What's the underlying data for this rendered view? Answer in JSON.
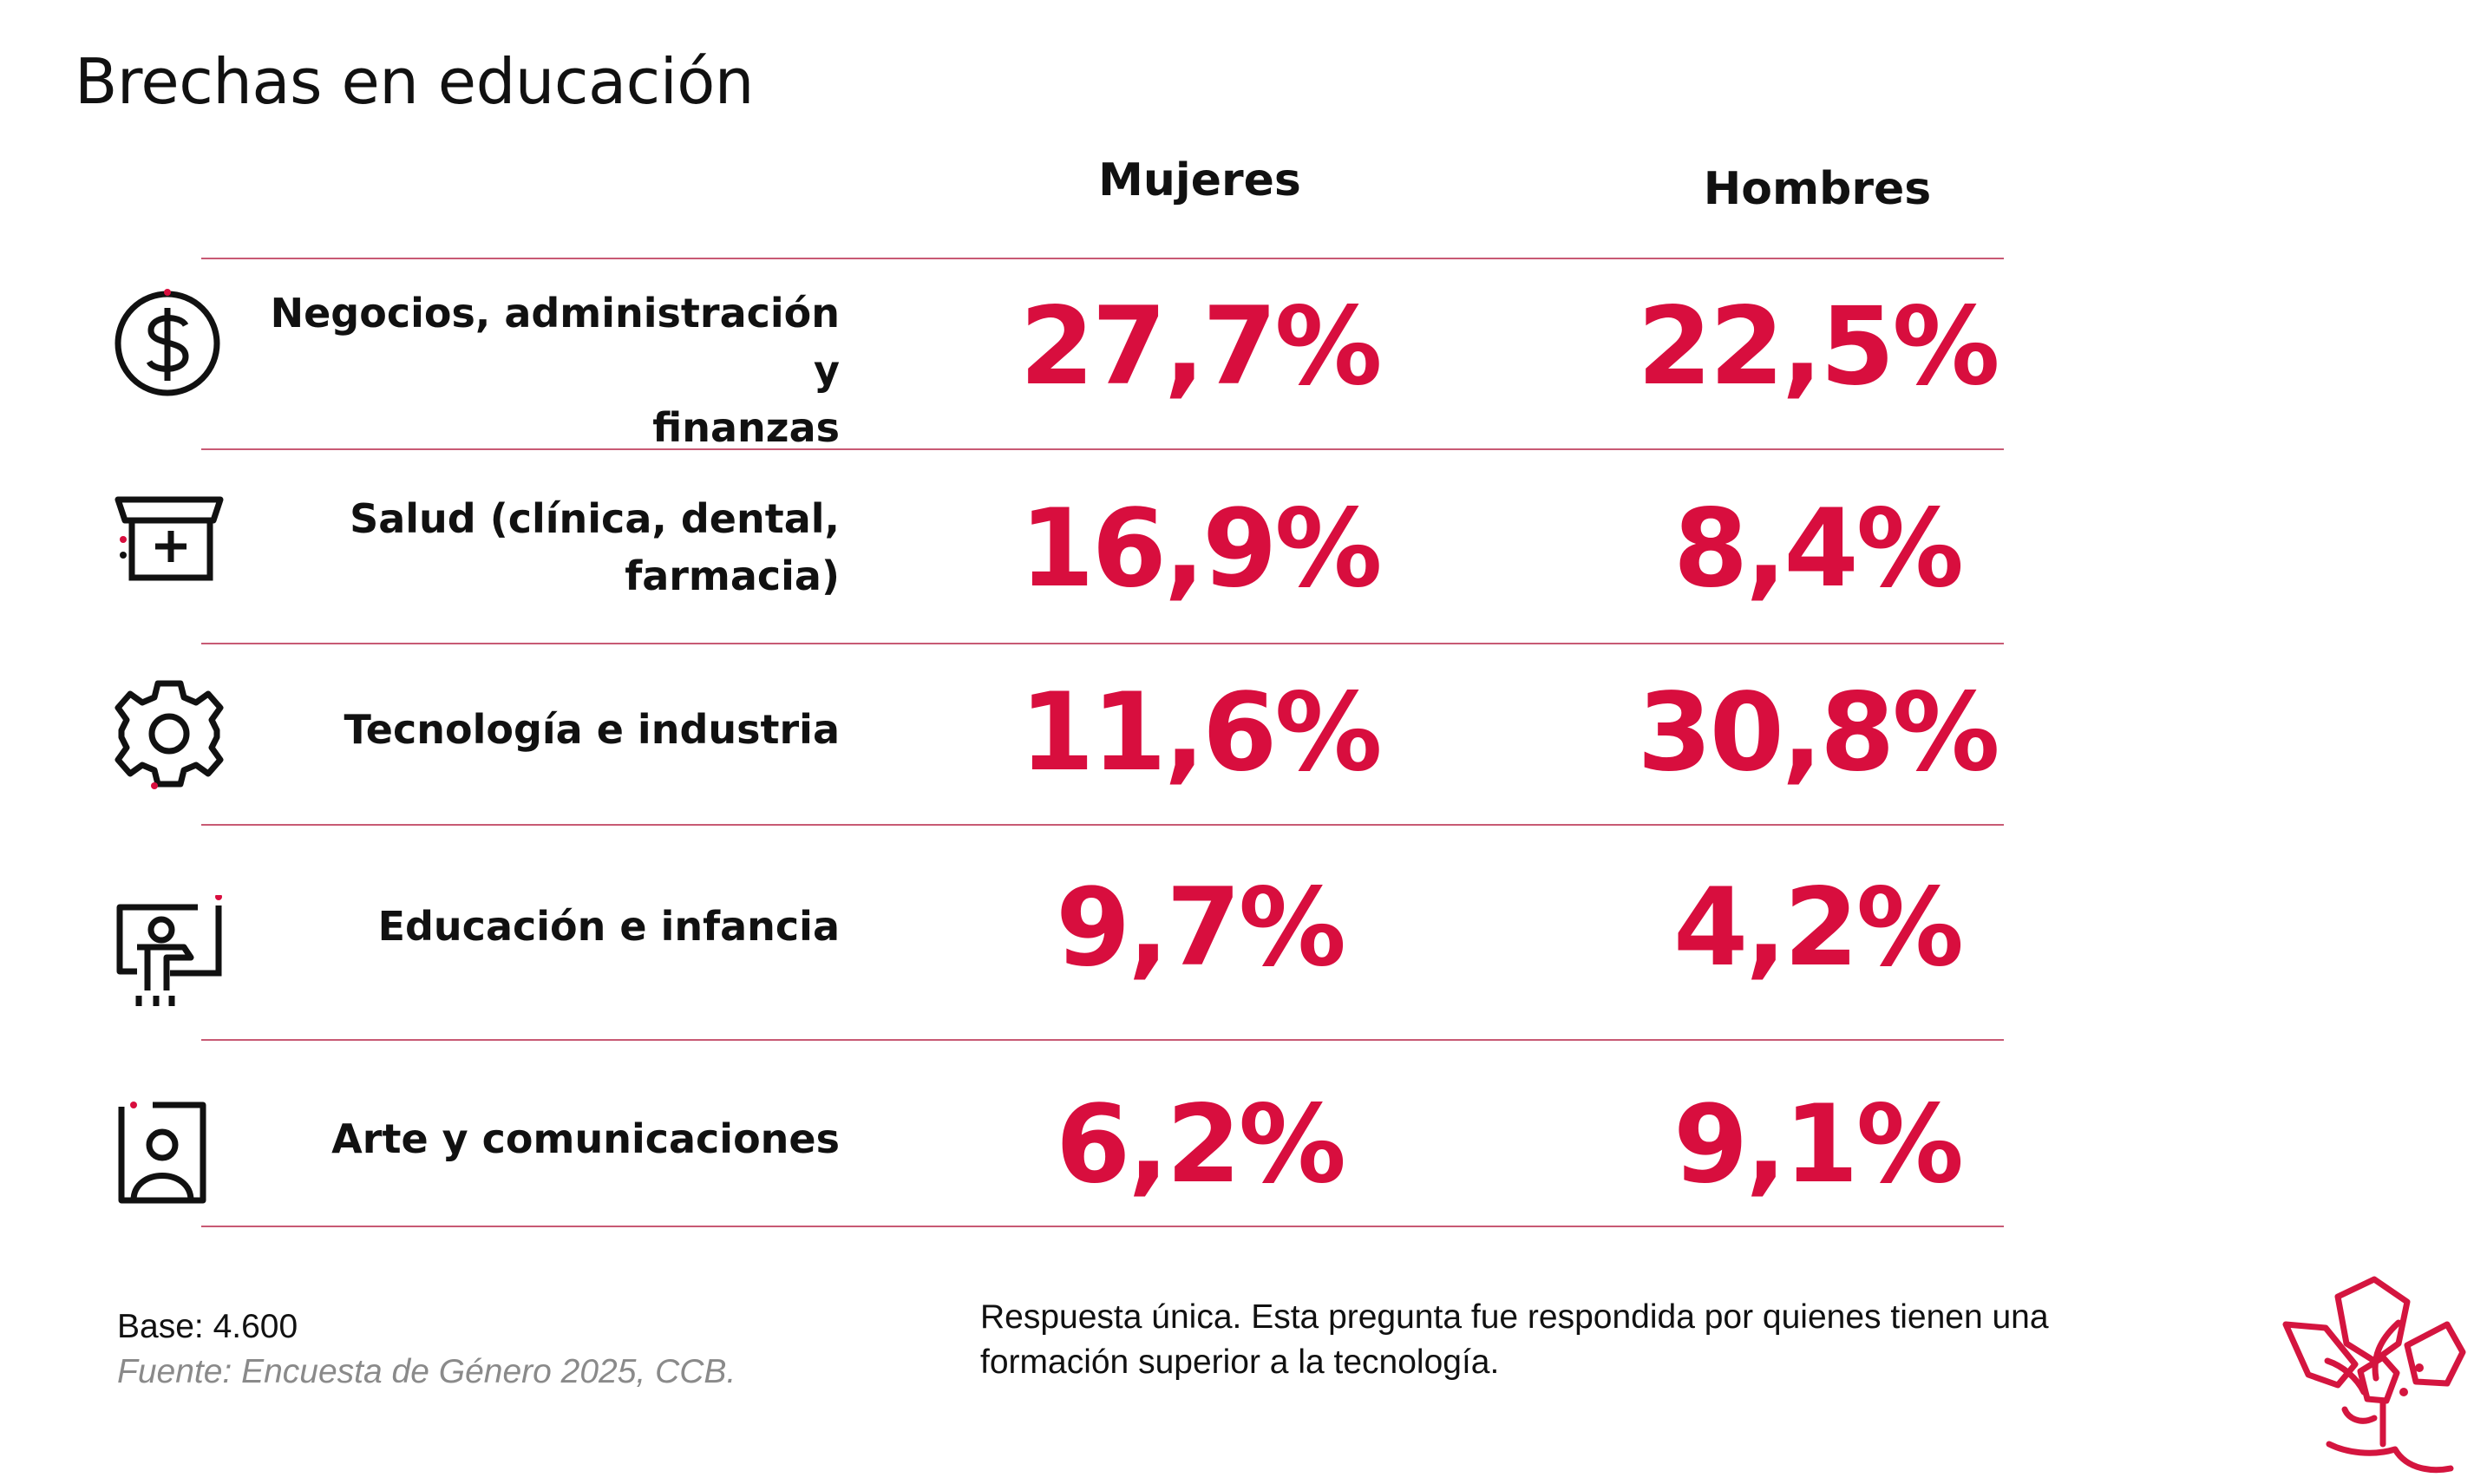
{
  "title": "Brechas en educación",
  "columns": {
    "women": "Mujeres",
    "men": "Hombres"
  },
  "rows": [
    {
      "icon": "dollar-icon",
      "label_line1": "Negocios, administración y",
      "label_line2": "finanzas",
      "women": "27,7%",
      "men": "22,5%"
    },
    {
      "icon": "medical-kit-icon",
      "label_line1": "Salud (clínica, dental,",
      "label_line2": "farmacia)",
      "women": "16,9%",
      "men": "8,4%"
    },
    {
      "icon": "gear-icon",
      "label_line1": "Tecnología e industria",
      "label_line2": "",
      "women": "11,6%",
      "men": "30,8%"
    },
    {
      "icon": "teacher-board-icon",
      "label_line1": "Educación e infancia",
      "label_line2": "",
      "women": "9,7%",
      "men": "4,2%"
    },
    {
      "icon": "portrait-frame-icon",
      "label_line1": "Arte y comunicaciones",
      "label_line2": "",
      "women": "6,2%",
      "men": "9,1%"
    }
  ],
  "chart_data": {
    "type": "table",
    "title": "Brechas en educación",
    "categories": [
      "Negocios, administración y finanzas",
      "Salud (clínica, dental, farmacia)",
      "Tecnología e industria",
      "Educación e infancia",
      "Arte y comunicaciones"
    ],
    "series": [
      {
        "name": "Mujeres",
        "values": [
          27.7,
          16.9,
          11.6,
          9.7,
          6.2
        ]
      },
      {
        "name": "Hombres",
        "values": [
          22.5,
          8.4,
          30.8,
          4.2,
          9.1
        ]
      }
    ],
    "unit": "%"
  },
  "footer": {
    "base": "Base: 4.600",
    "source": "Fuente: Encuesta de Género 2025, CCB.",
    "note": "Respuesta única. Esta pregunta fue respondida por quienes tienen una formación superior a la tecnología."
  },
  "colors": {
    "accent": "#d80e3e",
    "rule": "#c85a74",
    "text": "#111111",
    "muted": "#8a8a8a"
  }
}
